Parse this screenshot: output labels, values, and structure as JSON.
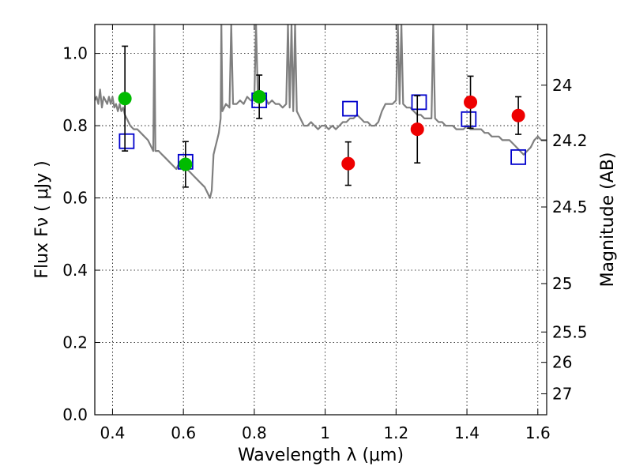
{
  "chart_data": {
    "type": "scatter",
    "title": "",
    "xlabel": "Wavelength  λ (μm)",
    "ylabel": "Flux  Fν  ( μJy )",
    "y2label": "Magnitude (AB)",
    "xlim": [
      0.35,
      1.625
    ],
    "ylim": [
      0.0,
      1.08
    ],
    "grid": true,
    "legend": "none",
    "xticks": [
      0.4,
      0.6,
      0.8,
      1.0,
      1.2,
      1.4,
      1.6
    ],
    "xtick_labels": [
      "0.4",
      "0.6",
      "0.8",
      "1",
      "1.2",
      "1.4",
      "1.6"
    ],
    "yticks": [
      0.0,
      0.2,
      0.4,
      0.6,
      0.8,
      1.0
    ],
    "ytick_labels": [
      "0.0",
      "0.2",
      "0.4",
      "0.6",
      "0.8",
      "1.0"
    ],
    "y2ticks": [
      {
        "label": "24",
        "flux": 0.912
      },
      {
        "label": "24.2",
        "flux": 0.759
      },
      {
        "label": "24.5",
        "flux": 0.575
      },
      {
        "label": "25",
        "flux": 0.363
      },
      {
        "label": "25.5",
        "flux": 0.229
      },
      {
        "label": "26",
        "flux": 0.145
      },
      {
        "label": "27",
        "flux": 0.058
      }
    ],
    "colors": {
      "green": "#00bb00",
      "red": "#ee0000",
      "model": "#7f7f7f",
      "square": "#0000cc",
      "error": "#000000"
    },
    "series": [
      {
        "marker": "circle",
        "color": "green",
        "points": [
          {
            "x": 0.435,
            "y": 0.875,
            "err": 0.145
          },
          {
            "x": 0.606,
            "y": 0.693,
            "err": 0.063
          },
          {
            "x": 0.814,
            "y": 0.88,
            "err": 0.06
          }
        ]
      },
      {
        "marker": "circle",
        "color": "red",
        "points": [
          {
            "x": 1.065,
            "y": 0.695,
            "err": 0.06
          },
          {
            "x": 1.26,
            "y": 0.79,
            "err": 0.093
          },
          {
            "x": 1.41,
            "y": 0.865,
            "err": 0.072
          },
          {
            "x": 1.545,
            "y": 0.828,
            "err": 0.052
          }
        ]
      },
      {
        "marker": "open-square",
        "color": "square",
        "points": [
          {
            "x": 0.44,
            "y": 0.757
          },
          {
            "x": 0.606,
            "y": 0.7
          },
          {
            "x": 0.814,
            "y": 0.87
          },
          {
            "x": 1.07,
            "y": 0.847
          },
          {
            "x": 1.265,
            "y": 0.865
          },
          {
            "x": 1.405,
            "y": 0.818
          },
          {
            "x": 1.545,
            "y": 0.713
          }
        ]
      },
      {
        "marker": "line",
        "color": "model",
        "points": [
          [
            0.35,
            0.87
          ],
          [
            0.355,
            0.88
          ],
          [
            0.36,
            0.86
          ],
          [
            0.365,
            0.9
          ],
          [
            0.37,
            0.85
          ],
          [
            0.375,
            0.88
          ],
          [
            0.38,
            0.87
          ],
          [
            0.385,
            0.86
          ],
          [
            0.39,
            0.88
          ],
          [
            0.395,
            0.86
          ],
          [
            0.4,
            0.88
          ],
          [
            0.405,
            0.85
          ],
          [
            0.41,
            0.86
          ],
          [
            0.415,
            0.84
          ],
          [
            0.42,
            0.86
          ],
          [
            0.425,
            0.84
          ],
          [
            0.43,
            0.85
          ],
          [
            0.435,
            0.83
          ],
          [
            0.44,
            0.82
          ],
          [
            0.445,
            0.81
          ],
          [
            0.45,
            0.8
          ],
          [
            0.46,
            0.79
          ],
          [
            0.47,
            0.79
          ],
          [
            0.48,
            0.78
          ],
          [
            0.49,
            0.77
          ],
          [
            0.5,
            0.76
          ],
          [
            0.51,
            0.74
          ],
          [
            0.515,
            0.73
          ],
          [
            0.518,
            1.08
          ],
          [
            0.521,
            0.73
          ],
          [
            0.53,
            0.73
          ],
          [
            0.54,
            0.72
          ],
          [
            0.55,
            0.71
          ],
          [
            0.56,
            0.7
          ],
          [
            0.57,
            0.69
          ],
          [
            0.58,
            0.68
          ],
          [
            0.59,
            0.7
          ],
          [
            0.6,
            0.69
          ],
          [
            0.61,
            0.68
          ],
          [
            0.62,
            0.67
          ],
          [
            0.63,
            0.66
          ],
          [
            0.64,
            0.65
          ],
          [
            0.65,
            0.64
          ],
          [
            0.66,
            0.63
          ],
          [
            0.67,
            0.61
          ],
          [
            0.675,
            0.6
          ],
          [
            0.68,
            0.62
          ],
          [
            0.685,
            0.72
          ],
          [
            0.69,
            0.74
          ],
          [
            0.695,
            0.76
          ],
          [
            0.7,
            0.78
          ],
          [
            0.705,
            0.82
          ],
          [
            0.707,
            1.08
          ],
          [
            0.71,
            0.84
          ],
          [
            0.72,
            0.86
          ],
          [
            0.73,
            0.85
          ],
          [
            0.735,
            1.08
          ],
          [
            0.74,
            0.86
          ],
          [
            0.75,
            0.86
          ],
          [
            0.76,
            0.87
          ],
          [
            0.77,
            0.86
          ],
          [
            0.78,
            0.88
          ],
          [
            0.79,
            0.87
          ],
          [
            0.8,
            0.87
          ],
          [
            0.805,
            1.08
          ],
          [
            0.81,
            0.88
          ],
          [
            0.815,
            0.89
          ],
          [
            0.82,
            0.87
          ],
          [
            0.83,
            0.88
          ],
          [
            0.84,
            0.86
          ],
          [
            0.85,
            0.87
          ],
          [
            0.86,
            0.86
          ],
          [
            0.87,
            0.86
          ],
          [
            0.88,
            0.85
          ],
          [
            0.89,
            0.86
          ],
          [
            0.895,
            1.08
          ],
          [
            0.9,
            0.85
          ],
          [
            0.905,
            1.08
          ],
          [
            0.91,
            0.84
          ],
          [
            0.915,
            1.08
          ],
          [
            0.92,
            0.84
          ],
          [
            0.93,
            0.82
          ],
          [
            0.94,
            0.8
          ],
          [
            0.95,
            0.8
          ],
          [
            0.96,
            0.81
          ],
          [
            0.97,
            0.8
          ],
          [
            0.98,
            0.79
          ],
          [
            0.99,
            0.8
          ],
          [
            1.0,
            0.8
          ],
          [
            1.01,
            0.79
          ],
          [
            1.02,
            0.8
          ],
          [
            1.03,
            0.79
          ],
          [
            1.04,
            0.8
          ],
          [
            1.05,
            0.81
          ],
          [
            1.06,
            0.81
          ],
          [
            1.07,
            0.82
          ],
          [
            1.08,
            0.82
          ],
          [
            1.09,
            0.83
          ],
          [
            1.1,
            0.82
          ],
          [
            1.11,
            0.81
          ],
          [
            1.12,
            0.81
          ],
          [
            1.13,
            0.8
          ],
          [
            1.14,
            0.8
          ],
          [
            1.15,
            0.81
          ],
          [
            1.16,
            0.84
          ],
          [
            1.17,
            0.86
          ],
          [
            1.18,
            0.86
          ],
          [
            1.19,
            0.86
          ],
          [
            1.2,
            0.87
          ],
          [
            1.205,
            1.08
          ],
          [
            1.21,
            0.86
          ],
          [
            1.215,
            1.08
          ],
          [
            1.22,
            0.86
          ],
          [
            1.23,
            0.85
          ],
          [
            1.24,
            0.85
          ],
          [
            1.25,
            0.84
          ],
          [
            1.26,
            0.83
          ],
          [
            1.27,
            0.83
          ],
          [
            1.28,
            0.82
          ],
          [
            1.29,
            0.82
          ],
          [
            1.3,
            0.82
          ],
          [
            1.305,
            1.08
          ],
          [
            1.31,
            0.82
          ],
          [
            1.32,
            0.81
          ],
          [
            1.33,
            0.81
          ],
          [
            1.34,
            0.8
          ],
          [
            1.35,
            0.8
          ],
          [
            1.36,
            0.8
          ],
          [
            1.37,
            0.79
          ],
          [
            1.38,
            0.79
          ],
          [
            1.39,
            0.79
          ],
          [
            1.4,
            0.8
          ],
          [
            1.41,
            0.79
          ],
          [
            1.42,
            0.79
          ],
          [
            1.43,
            0.79
          ],
          [
            1.44,
            0.79
          ],
          [
            1.45,
            0.78
          ],
          [
            1.46,
            0.78
          ],
          [
            1.47,
            0.77
          ],
          [
            1.48,
            0.77
          ],
          [
            1.49,
            0.77
          ],
          [
            1.5,
            0.76
          ],
          [
            1.51,
            0.76
          ],
          [
            1.52,
            0.76
          ],
          [
            1.53,
            0.75
          ],
          [
            1.54,
            0.74
          ],
          [
            1.55,
            0.73
          ],
          [
            1.56,
            0.72
          ],
          [
            1.57,
            0.73
          ],
          [
            1.58,
            0.74
          ],
          [
            1.59,
            0.76
          ],
          [
            1.6,
            0.77
          ],
          [
            1.61,
            0.76
          ],
          [
            1.62,
            0.76
          ],
          [
            1.625,
            0.76
          ]
        ]
      }
    ]
  }
}
